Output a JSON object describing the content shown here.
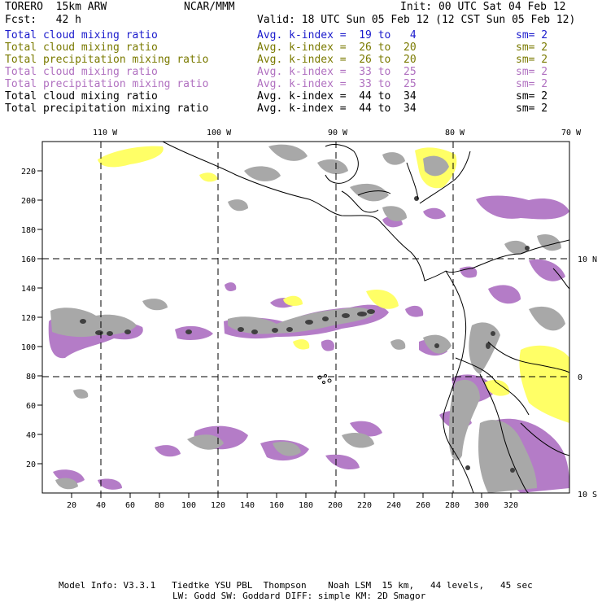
{
  "header": {
    "title": "TORERO  15km ARW",
    "org": "NCAR/MMM",
    "init": "Init: 00 UTC Sat 04 Feb 12",
    "fcst": "Fcst:   42 h",
    "valid": "Valid: 18 UTC Sun 05 Feb 12 (12 CST Sun 05 Feb 12)"
  },
  "colors": {
    "blue": "#1a1acc",
    "olive": "#7a7a00",
    "violet": "#b070c0",
    "black": "#000000",
    "gray_fill": "#a8a8a8",
    "yellow_fill": "#ffff66",
    "purple_fill": "#b47cc7"
  },
  "legend": [
    {
      "label": "Total cloud mixing ratio",
      "index": "Avg. k-index =  19 to   4",
      "sm": "sm= 2",
      "color": "#1a1acc"
    },
    {
      "label": "Total cloud mixing ratio",
      "index": "Avg. k-index =  26 to  20",
      "sm": "sm= 2",
      "color": "#7a7a00"
    },
    {
      "label": "Total precipitation mixing ratio",
      "index": "Avg. k-index =  26 to  20",
      "sm": "sm= 2",
      "color": "#7a7a00"
    },
    {
      "label": "Total cloud mixing ratio",
      "index": "Avg. k-index =  33 to  25",
      "sm": "sm= 2",
      "color": "#b070c0"
    },
    {
      "label": "Total precipitation mixing ratio",
      "index": "Avg. k-index =  33 to  25",
      "sm": "sm= 2",
      "color": "#b070c0"
    },
    {
      "label": "Total cloud mixing ratio",
      "index": "Avg. k-index =  44 to  34",
      "sm": "sm= 2",
      "color": "#000000"
    },
    {
      "label": "Total precipitation mixing ratio",
      "index": "Avg. k-index =  44 to  34",
      "sm": "sm= 2",
      "color": "#000000"
    }
  ],
  "map": {
    "lon_labels": [
      "110 W",
      "100 W",
      "90 W",
      "80 W",
      "70 W"
    ],
    "lat_labels": [
      "10 N",
      "0",
      "10 S"
    ],
    "y_ticks": [
      "220",
      "200",
      "180",
      "160",
      "140",
      "120",
      "100",
      "80",
      "60",
      "40",
      "20"
    ],
    "x_ticks": [
      "20",
      "40",
      "60",
      "80",
      "100",
      "120",
      "140",
      "160",
      "180",
      "200",
      "220",
      "240",
      "260",
      "280",
      "300",
      "320"
    ]
  },
  "footer": {
    "line1": "Model Info: V3.3.1   Tiedtke YSU PBL  Thompson    Noah LSM  15 km,   44 levels,   45 sec",
    "line2": "LW: Godd SW: Goddard DIFF: simple KM: 2D Smagor"
  }
}
